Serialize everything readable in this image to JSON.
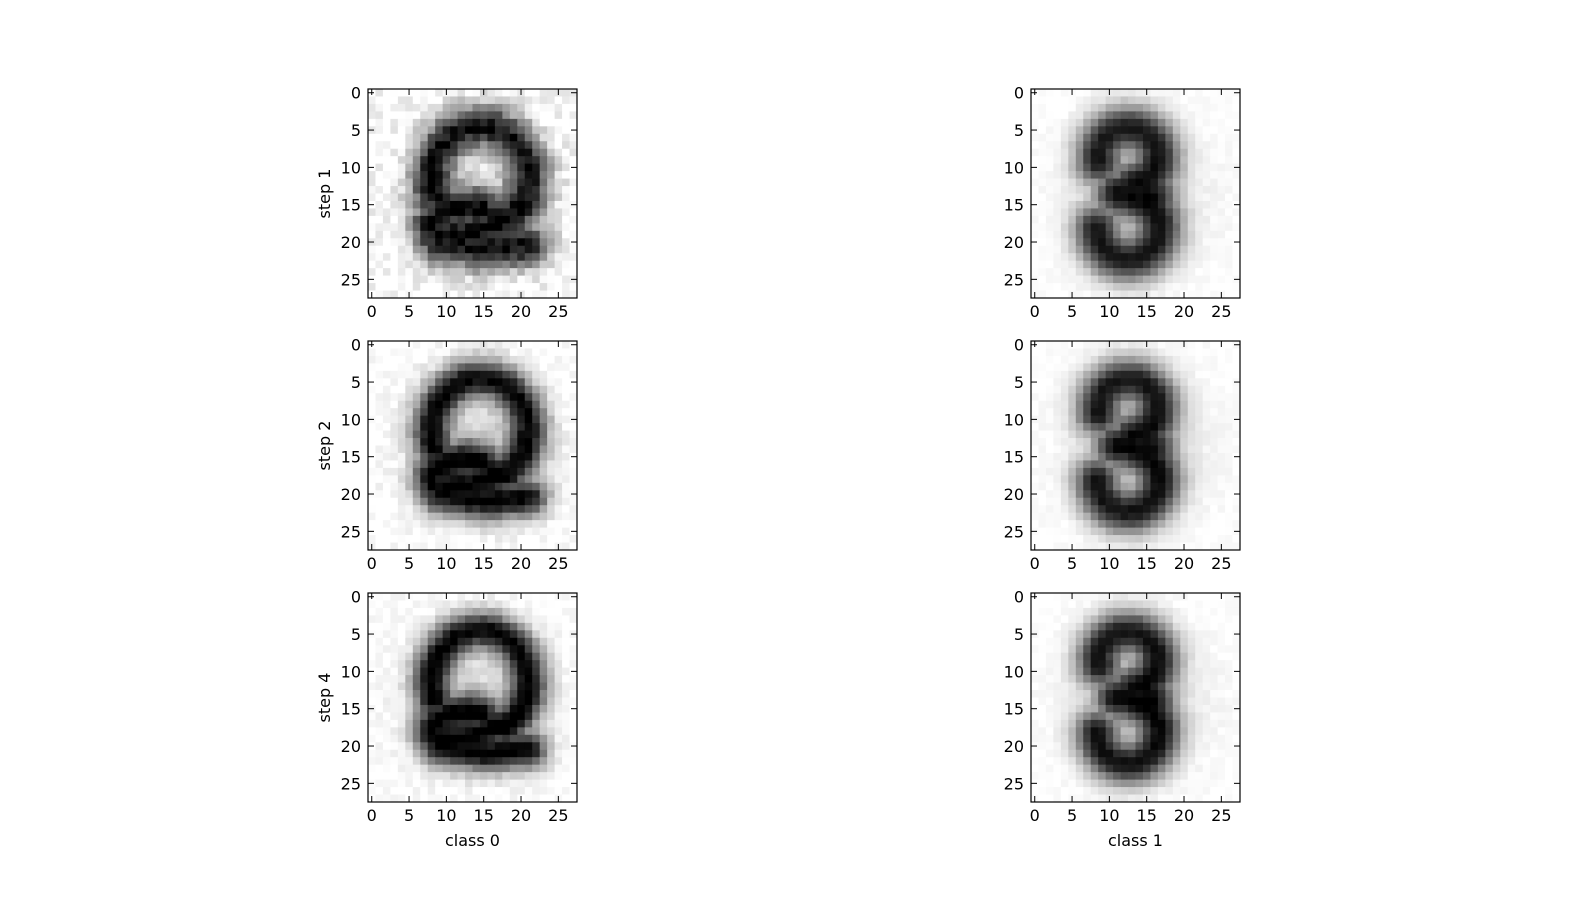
{
  "chart_data": {
    "type": "heatmap",
    "colormap": "gray_r",
    "grid": false,
    "rows": [
      {
        "label": "step 1"
      },
      {
        "label": "step 2"
      },
      {
        "label": "step 4"
      }
    ],
    "columns": [
      {
        "label": "class 0"
      },
      {
        "label": "class 1"
      }
    ],
    "xlim": [
      -0.5,
      27.5
    ],
    "ylim": [
      27.5,
      -0.5
    ],
    "x_ticks": [
      0,
      5,
      10,
      15,
      20,
      25
    ],
    "y_ticks": [
      0,
      5,
      10,
      15,
      20,
      25
    ],
    "x_tick_labels": [
      "0",
      "5",
      "10",
      "15",
      "20",
      "25"
    ],
    "y_tick_labels": [
      "0",
      "5",
      "10",
      "15",
      "20",
      "25"
    ],
    "image_size": [
      28,
      28
    ],
    "panels": [
      {
        "row": 0,
        "col": 0,
        "digit_shape": "2",
        "sharpness": 0.55,
        "noise": 0.22
      },
      {
        "row": 0,
        "col": 1,
        "digit_shape": "3",
        "sharpness": 0.45,
        "noise": 0.05
      },
      {
        "row": 1,
        "col": 0,
        "digit_shape": "2",
        "sharpness": 0.75,
        "noise": 0.12
      },
      {
        "row": 1,
        "col": 1,
        "digit_shape": "3",
        "sharpness": 0.5,
        "noise": 0.05
      },
      {
        "row": 2,
        "col": 0,
        "digit_shape": "2",
        "sharpness": 0.8,
        "noise": 0.1
      },
      {
        "row": 2,
        "col": 1,
        "digit_shape": "3",
        "sharpness": 0.55,
        "noise": 0.05
      }
    ]
  }
}
